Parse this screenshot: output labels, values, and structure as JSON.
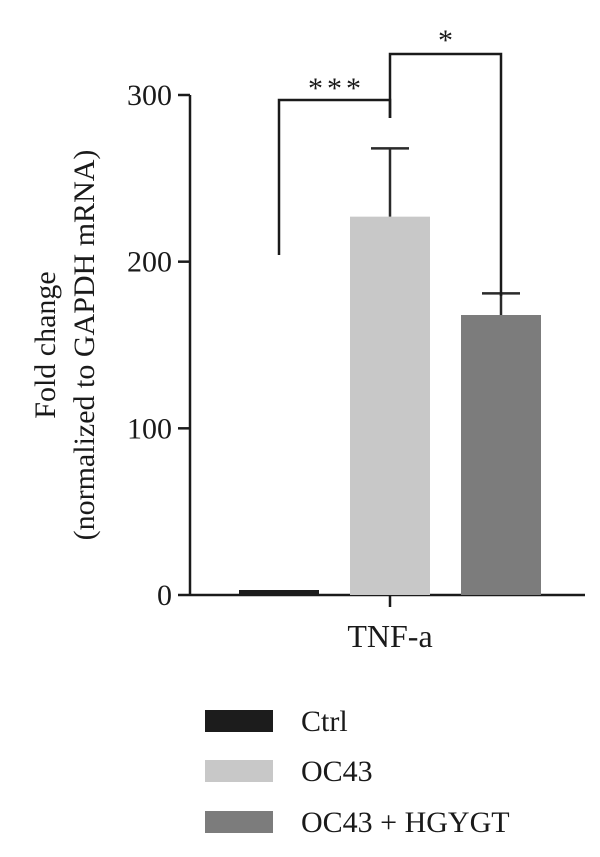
{
  "chart_data": {
    "type": "bar",
    "ylabel_line1": "Fold change",
    "ylabel_line2": "(normalized to GAPDH mRNA)",
    "ylim": [
      0,
      300
    ],
    "yticks": [
      0,
      100,
      200,
      300
    ],
    "category": "TNF-a",
    "grid": false,
    "series": [
      {
        "name": "Ctrl",
        "value": 3,
        "error": 0,
        "color": "#1c1c1c"
      },
      {
        "name": "OC43",
        "value": 227,
        "error": 41,
        "color": "#c8c8c8"
      },
      {
        "name": "OC43 + HGYGT",
        "value": 168,
        "error": 13,
        "color": "#7c7c7c"
      }
    ],
    "significance": [
      {
        "from": 0,
        "to": 1,
        "label": "***"
      },
      {
        "from": 1,
        "to": 2,
        "label": "*"
      }
    ],
    "legend_position": "bottom"
  }
}
